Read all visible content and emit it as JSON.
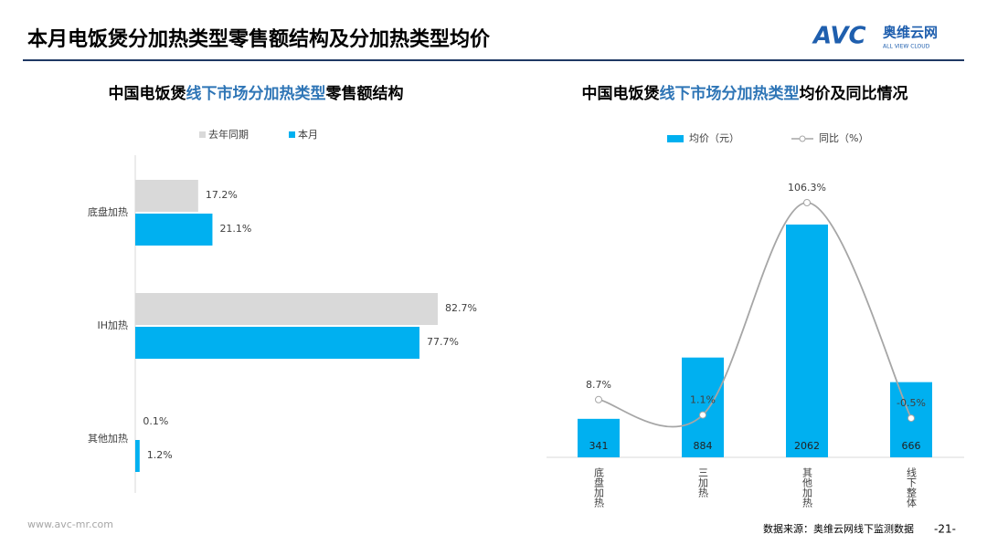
{
  "header": {
    "title": "本月电饭煲分加热类型零售额结构及分加热类型均价",
    "logo": "AVC",
    "logo_cn": "奥维云网",
    "logo_en": "ALL VIEW CLOUD"
  },
  "chart_data": [
    {
      "type": "hbar",
      "title_parts": [
        "中国电饭煲",
        "线下市场分加热类型",
        "零售额结构"
      ],
      "categories": [
        "底盘加热",
        "IH加热",
        "其他加热"
      ],
      "series": [
        {
          "name": "去年同期",
          "color": "#d9d9d9",
          "values": [
            17.2,
            82.7,
            0.1
          ],
          "value_labels": [
            "17.2%",
            "82.7%",
            "0.1%"
          ]
        },
        {
          "name": "本月",
          "color": "#00b0f0",
          "values": [
            21.1,
            77.7,
            1.2
          ],
          "value_labels": [
            "21.1%",
            "77.7%",
            "1.2%"
          ]
        }
      ]
    },
    {
      "type": "combo",
      "title_parts": [
        "中国电饭煲",
        "线下市场分加热类型",
        "均价及同比情况"
      ],
      "categories": [
        "底盘加热",
        "三加热",
        "其他加热",
        "线下整体"
      ],
      "series": [
        {
          "name": "均价（元）",
          "type": "bar",
          "color": "#00b0f0",
          "values": [
            341,
            884,
            2062,
            666
          ]
        },
        {
          "name": "同比（%）",
          "type": "line",
          "axis": "y2",
          "color": "#a6a6a6",
          "values": [
            8.7,
            1.1,
            106.3,
            -0.5
          ],
          "value_labels": [
            "8.7%",
            "1.1%",
            "106.3%",
            "-0.5%"
          ]
        }
      ]
    }
  ],
  "footer": {
    "website": "www.avc-mr.com",
    "source": "数据来源：奥维云网线下监测数据",
    "page": "-21-"
  }
}
